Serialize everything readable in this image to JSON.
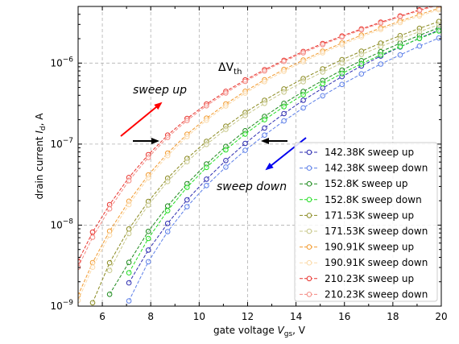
{
  "chart_data": {
    "type": "line",
    "title": "",
    "xlabel": {
      "prefix": "gate voltage ",
      "var": "V",
      "sub": "gs",
      "suffix": ", V"
    },
    "ylabel": {
      "prefix": "drain current ",
      "var": "I",
      "sub": "d",
      "suffix": ", A"
    },
    "xlim": [
      5,
      20
    ],
    "ylim": [
      1e-09,
      5e-06
    ],
    "yscale": "log",
    "grid": true,
    "legend_position": "lower right",
    "x_ticks": [
      {
        "value": 6,
        "label": "6"
      },
      {
        "value": 8,
        "label": "8"
      },
      {
        "value": 10,
        "label": "10"
      },
      {
        "value": 12,
        "label": "12"
      },
      {
        "value": 14,
        "label": "14"
      },
      {
        "value": 16,
        "label": "16"
      },
      {
        "value": 18,
        "label": "18"
      },
      {
        "value": 20,
        "label": "20"
      }
    ],
    "y_ticks": [
      {
        "value": 1e-09,
        "base": "10",
        "exp": "−9"
      },
      {
        "value": 1e-08,
        "base": "10",
        "exp": "−8"
      },
      {
        "value": 1e-07,
        "base": "10",
        "exp": "−7"
      },
      {
        "value": 1e-06,
        "base": "10",
        "exp": "−6"
      }
    ],
    "x": [
      5.0,
      5.6,
      6.3,
      7.1,
      7.9,
      8.7,
      9.5,
      10.3,
      11.1,
      11.9,
      12.7,
      13.5,
      14.3,
      15.1,
      15.9,
      16.7,
      17.5,
      18.3,
      19.1,
      19.9
    ],
    "series": [
      {
        "name": "142.38K sweep up",
        "color": "#2b2bb0",
        "fill": "#2b2bb0",
        "marker_fill": "none",
        "values": [
          null,
          null,
          null,
          1.94e-09,
          4.92e-09,
          1.05e-08,
          2.05e-08,
          3.69e-08,
          6.26e-08,
          1.02e-07,
          1.58e-07,
          2.38e-07,
          3.47e-07,
          4.91e-07,
          6.8e-07,
          9.2e-07,
          1.22e-06,
          1.58e-06,
          2.03e-06,
          2.56e-06
        ]
      },
      {
        "name": "142.38K sweep down",
        "color": "#5b7ee8",
        "fill": "#5b7ee8",
        "marker_fill": "none",
        "values": [
          null,
          null,
          null,
          1.16e-09,
          3.53e-09,
          8.31e-09,
          1.69e-08,
          3.08e-08,
          5.2e-08,
          8.38e-08,
          1.29e-07,
          1.93e-07,
          2.8e-07,
          3.95e-07,
          5.45e-07,
          7.35e-07,
          9.73e-07,
          1.26e-06,
          1.62e-06,
          2.04e-06
        ]
      },
      {
        "name": "152.8K sweep up",
        "color": "#1c8a1c",
        "fill": "#1c8a1c",
        "marker_fill": "none",
        "values": [
          null,
          null,
          1.4e-09,
          3.47e-09,
          8.37e-09,
          1.72e-08,
          3.25e-08,
          5.68e-08,
          9.34e-08,
          1.46e-07,
          2.19e-07,
          3.18e-07,
          4.46e-07,
          6.1e-07,
          8.17e-07,
          1.07e-06,
          1.38e-06,
          1.76e-06,
          2.2e-06,
          2.73e-06
        ]
      },
      {
        "name": "152.8K sweep down",
        "color": "#22dd22",
        "fill": "#22dd22",
        "marker_fill": "none",
        "values": [
          null,
          null,
          null,
          2.58e-09,
          6.84e-09,
          1.51e-08,
          2.93e-08,
          5.15e-08,
          8.5e-08,
          1.33e-07,
          2e-07,
          2.9e-07,
          4.07e-07,
          5.57e-07,
          7.46e-07,
          9.79e-07,
          1.26e-06,
          1.6e-06,
          2.01e-06,
          2.49e-06
        ]
      },
      {
        "name": "171.53K sweep up",
        "color": "#8a8a20",
        "fill": "#8a8a20",
        "marker_fill": "none",
        "values": [
          null,
          1.1e-09,
          3.43e-09,
          8.97e-09,
          1.96e-08,
          3.79e-08,
          6.64e-08,
          1.08e-07,
          1.66e-07,
          2.45e-07,
          3.47e-07,
          4.79e-07,
          6.44e-07,
          8.48e-07,
          1.1e-06,
          1.4e-06,
          1.76e-06,
          2.18e-06,
          2.68e-06,
          3.26e-06
        ]
      },
      {
        "name": "171.53K sweep down",
        "color": "#c8c88c",
        "fill": "#c8c88c",
        "marker_fill": "none",
        "values": [
          null,
          null,
          2.76e-09,
          7.86e-09,
          1.77e-08,
          3.45e-08,
          6.07e-08,
          9.91e-08,
          1.52e-07,
          2.25e-07,
          3.18e-07,
          4.39e-07,
          5.89e-07,
          7.75e-07,
          1e-06,
          1.28e-06,
          1.6e-06,
          1.99e-06,
          2.44e-06,
          2.97e-06
        ]
      },
      {
        "name": "190.91K sweep up",
        "color": "#f29a2e",
        "fill": "#f29a2e",
        "marker_fill": "none",
        "values": [
          1.36e-09,
          3.44e-09,
          8.43e-09,
          1.97e-08,
          4.16e-08,
          7.74e-08,
          1.32e-07,
          2.09e-07,
          3.13e-07,
          4.49e-07,
          6.21e-07,
          8.34e-07,
          1.09e-06,
          1.4e-06,
          1.77e-06,
          2.21e-06,
          2.71e-06,
          3.3e-06,
          3.97e-06,
          4.74e-06
        ]
      },
      {
        "name": "190.91K sweep down",
        "color": "#fbd9a7",
        "fill": "#fbd9a7",
        "marker_fill": "none",
        "values": [
          1.18e-09,
          3.02e-09,
          7.53e-09,
          1.79e-08,
          3.84e-08,
          7.21e-08,
          1.24e-07,
          1.97e-07,
          2.96e-07,
          4.26e-07,
          5.9e-07,
          7.94e-07,
          1.04e-06,
          1.34e-06,
          1.69e-06,
          2.11e-06,
          2.6e-06,
          3.16e-06,
          3.81e-06,
          4.55e-06
        ]
      },
      {
        "name": "210.23K sweep up",
        "color": "#e8322d",
        "fill": "#e8322d",
        "marker_fill": "none",
        "values": [
          3.57e-09,
          8.2e-09,
          1.79e-08,
          3.87e-08,
          7.41e-08,
          1.29e-07,
          2.07e-07,
          3.12e-07,
          4.48e-07,
          6.19e-07,
          8.29e-07,
          1.08e-06,
          1.39e-06,
          1.74e-06,
          2.16e-06,
          2.64e-06,
          3.19e-06,
          3.82e-06,
          4.53e-06,
          5.34e-06
        ]
      },
      {
        "name": "210.23K sweep down",
        "color": "#f48a82",
        "fill": "#f48a82",
        "marker_fill": "none",
        "values": [
          3.02e-09,
          7.09e-09,
          1.59e-08,
          3.53e-08,
          6.85e-08,
          1.21e-07,
          1.96e-07,
          2.97e-07,
          4.28e-07,
          5.94e-07,
          7.99e-07,
          1.05e-06,
          1.34e-06,
          1.69e-06,
          2.1e-06,
          2.57e-06,
          3.11e-06,
          3.73e-06,
          4.43e-06,
          5.22e-06
        ]
      }
    ],
    "annotations": {
      "sweep_up": "sweep up",
      "sweep_down": "sweep down",
      "delta_vth": {
        "delta": "ΔV",
        "sub": "th"
      }
    }
  }
}
